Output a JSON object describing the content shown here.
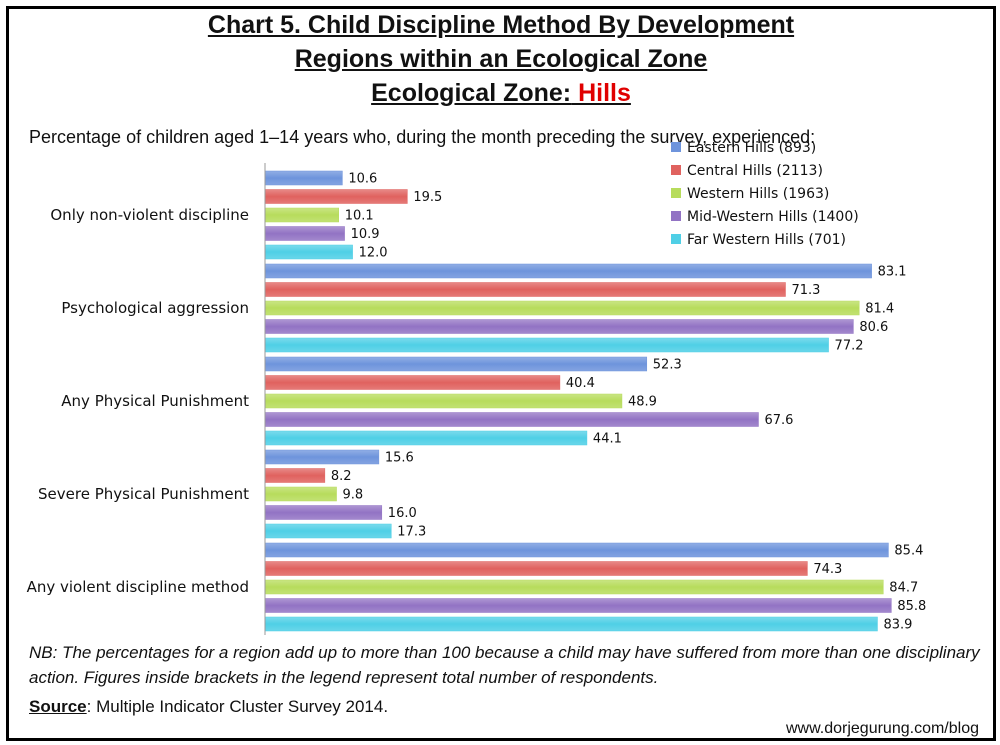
{
  "title": {
    "line1": "Chart 5. Child Discipline Method By Development",
    "line2": "Regions within an Ecological Zone",
    "line3_prefix": "Ecological Zone:",
    "line3_value": " Hills"
  },
  "subtitle": "Percentage of children aged 1–14 years who, during the month preceding the survey, experienced:",
  "note": "NB: The percentages for a region add up to more than 100 because a child may have suffered from more than one disciplinary action. Figures inside brackets in the legend represent total number of respondents.",
  "source": {
    "label": "Source",
    "text": ": Multiple Indicator Cluster Survey 2014."
  },
  "website": "www.dorjegurung.com/blog",
  "chart_data": {
    "type": "bar",
    "orientation": "horizontal",
    "categories": [
      "Only non-violent discipline",
      "Psychological aggression",
      "Any Physical Punishment",
      "Severe Physical Punishment",
      "Any violent discipline method"
    ],
    "series": [
      {
        "name": "Eastern Hills (893)",
        "color": "#6e94dc",
        "values": [
          10.6,
          83.1,
          52.3,
          15.6,
          85.4
        ]
      },
      {
        "name": "Central Hills (2113)",
        "color": "#e0625f",
        "values": [
          19.5,
          71.3,
          40.4,
          8.2,
          74.3
        ]
      },
      {
        "name": "Western Hills (1963)",
        "color": "#b7dc5c",
        "values": [
          10.1,
          81.4,
          48.9,
          9.8,
          84.7
        ]
      },
      {
        "name": "Mid-Western Hills (1400)",
        "color": "#9273c4",
        "values": [
          10.9,
          80.6,
          67.6,
          16.0,
          85.8
        ]
      },
      {
        "name": "Far Western Hills (701)",
        "color": "#4fcfe6",
        "values": [
          12.0,
          77.2,
          44.1,
          17.3,
          83.9
        ]
      }
    ],
    "xlim": [
      0,
      100
    ],
    "legend_position": "top-right",
    "grid": false,
    "data_labels": true
  }
}
